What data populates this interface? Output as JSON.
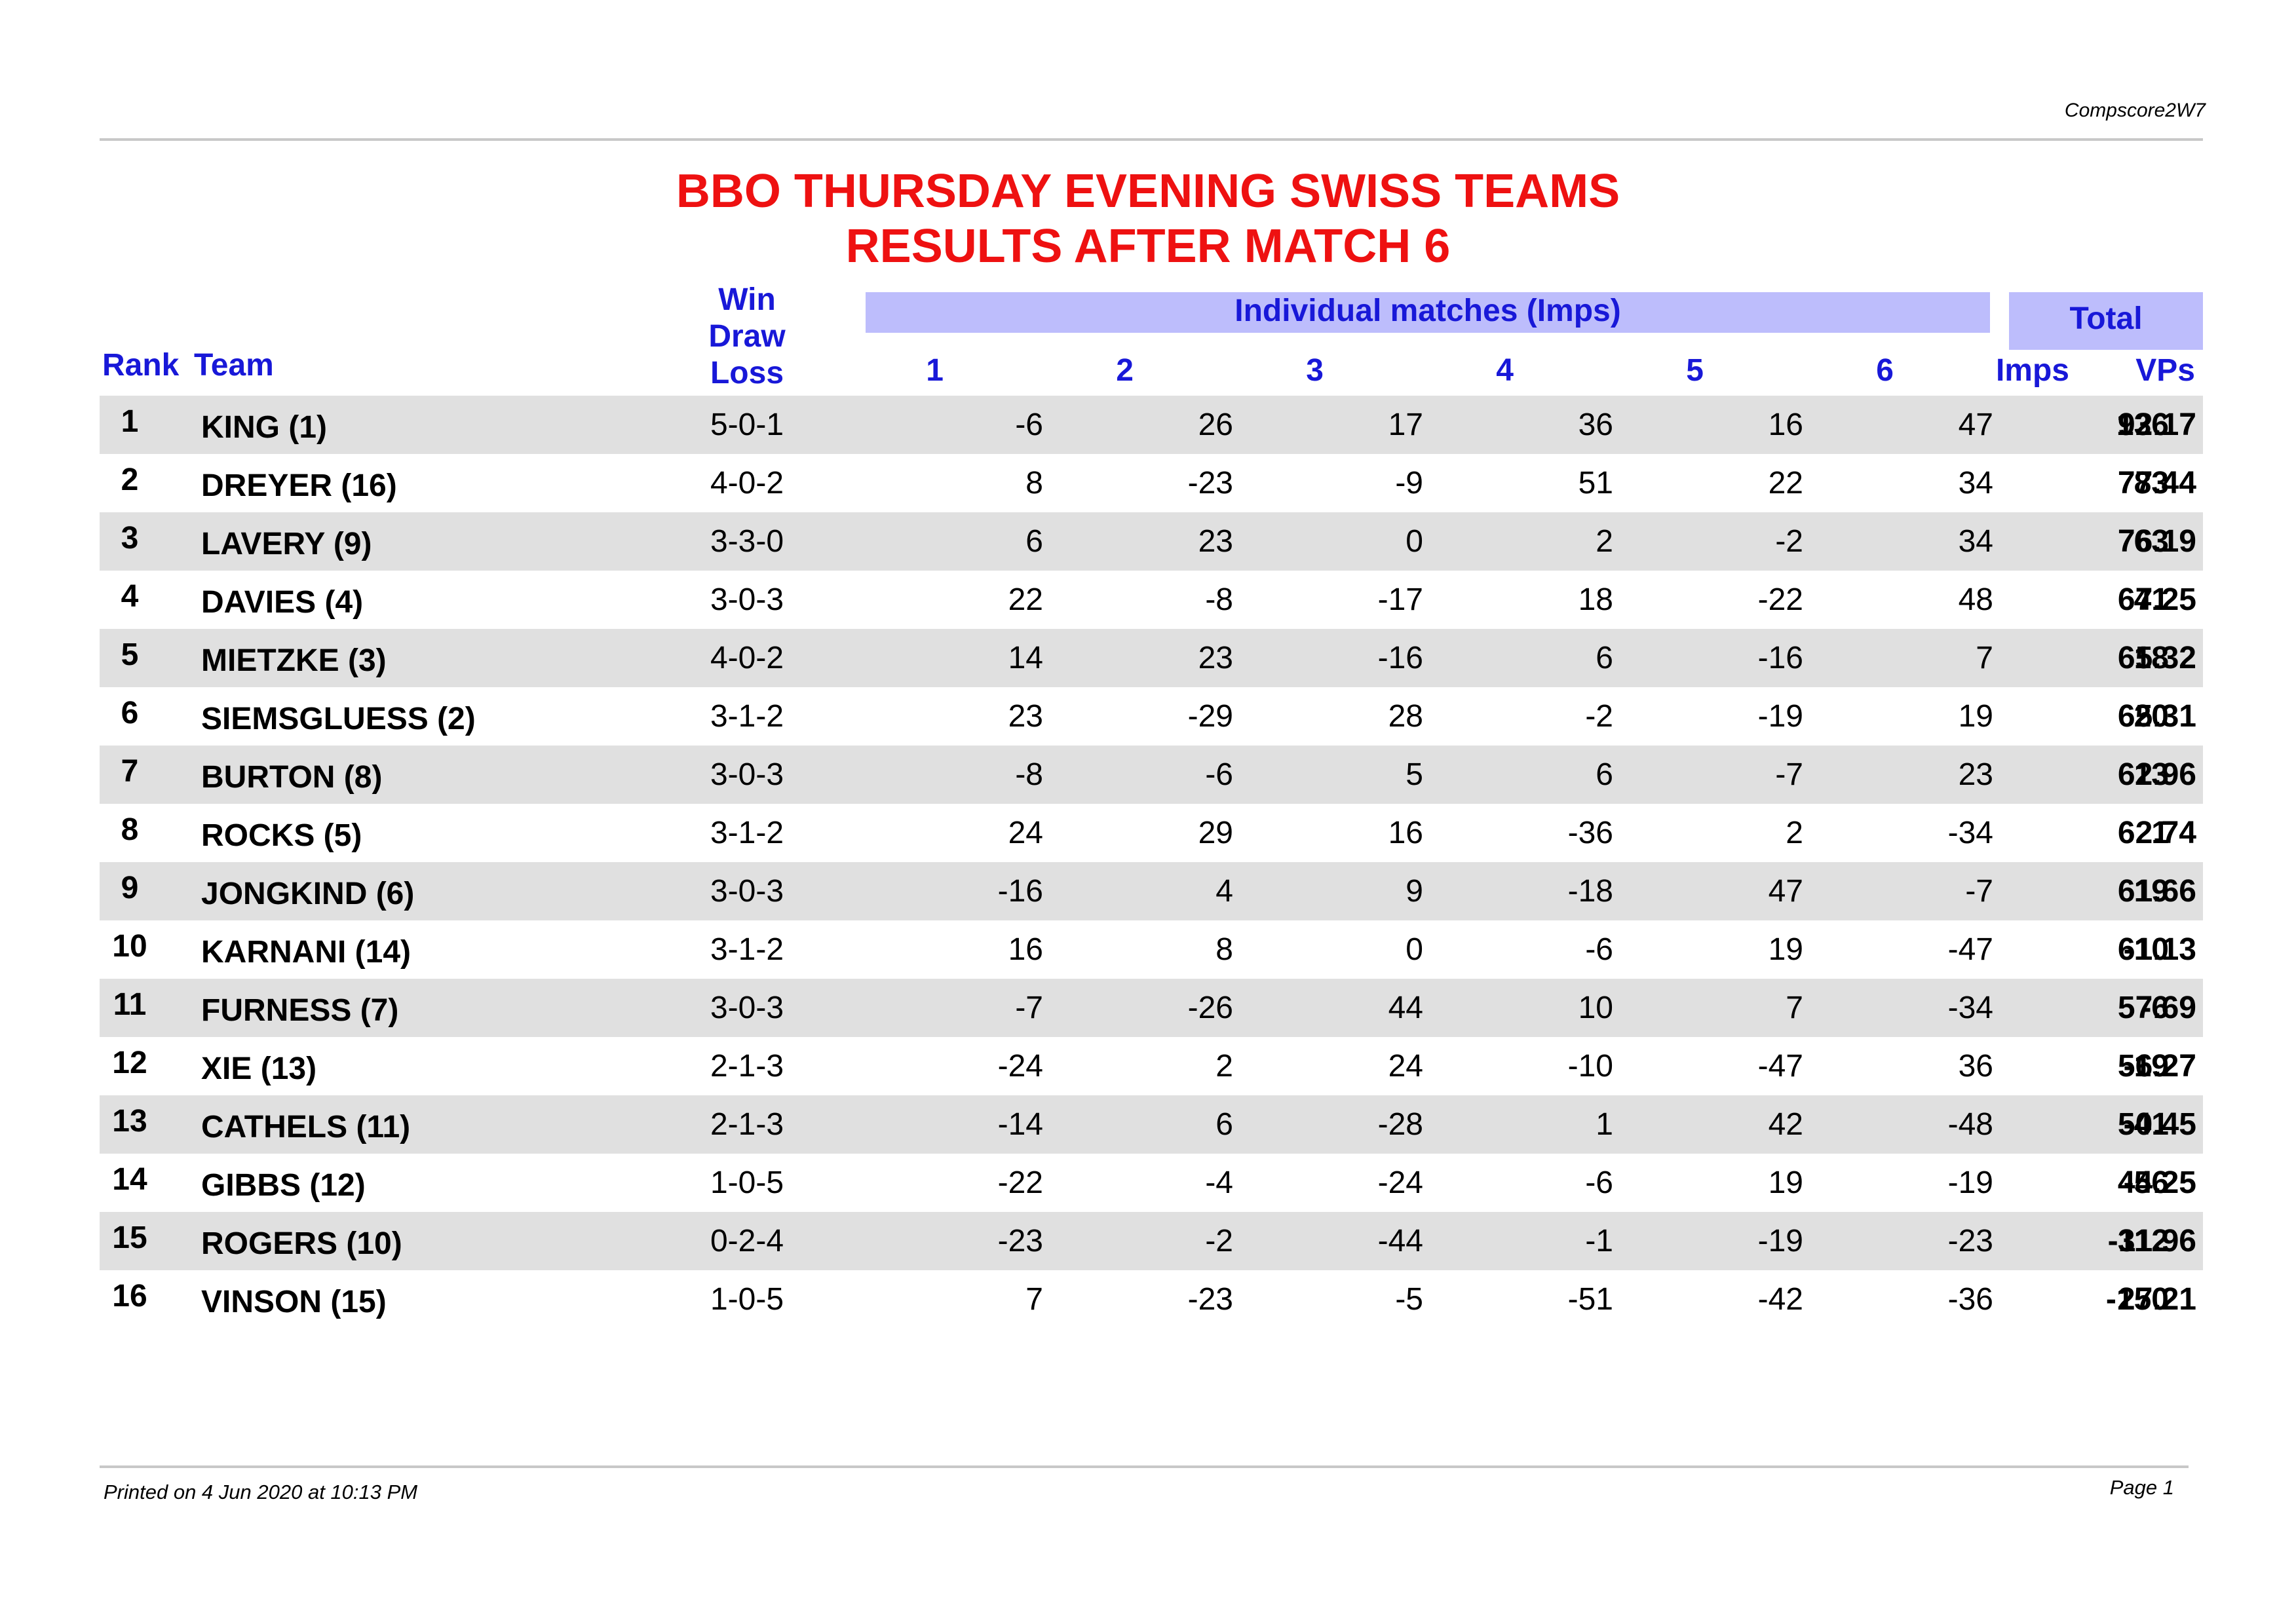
{
  "header": {
    "code": "Compscore2W7"
  },
  "title": {
    "line1": "BBO THURSDAY EVENING SWISS TEAMS",
    "line2": "RESULTS AFTER MATCH 6"
  },
  "columns": {
    "rank": "Rank",
    "team": "Team",
    "wdl": {
      "win": "Win",
      "draw": "Draw",
      "loss": "Loss"
    },
    "matches_group": "Individual matches (Imps)",
    "matches": [
      "1",
      "2",
      "3",
      "4",
      "5",
      "6"
    ],
    "total_group": "Total",
    "imps": "Imps",
    "vps": "VPs"
  },
  "rows": [
    {
      "rank": "1",
      "team": "KING (1)",
      "wdl": "5-0-1",
      "m": [
        "-6",
        "26",
        "17",
        "36",
        "16",
        "47"
      ],
      "imps": "136",
      "vps": "92.17"
    },
    {
      "rank": "2",
      "team": "DREYER (16)",
      "wdl": "4-0-2",
      "m": [
        "8",
        "-23",
        "-9",
        "51",
        "22",
        "34"
      ],
      "imps": "83",
      "vps": "77.44"
    },
    {
      "rank": "3",
      "team": "LAVERY (9)",
      "wdl": "3-3-0",
      "m": [
        "6",
        "23",
        "0",
        "2",
        "-2",
        "34"
      ],
      "imps": "63",
      "vps": "76.19"
    },
    {
      "rank": "4",
      "team": "DAVIES (4)",
      "wdl": "3-0-3",
      "m": [
        "22",
        "-8",
        "-17",
        "18",
        "-22",
        "48"
      ],
      "imps": "41",
      "vps": "67.25"
    },
    {
      "rank": "5",
      "team": "MIETZKE (3)",
      "wdl": "4-0-2",
      "m": [
        "14",
        "23",
        "-16",
        "6",
        "-16",
        "7"
      ],
      "imps": "18",
      "vps": "65.32"
    },
    {
      "rank": "6",
      "team": "SIEMSGLUESS (2)",
      "wdl": "3-1-2",
      "m": [
        "23",
        "-29",
        "28",
        "-2",
        "-19",
        "19"
      ],
      "imps": "20",
      "vps": "65.31"
    },
    {
      "rank": "7",
      "team": "BURTON (8)",
      "wdl": "3-0-3",
      "m": [
        "-8",
        "-6",
        "5",
        "6",
        "-7",
        "23"
      ],
      "imps": "13",
      "vps": "62.96"
    },
    {
      "rank": "8",
      "team": "ROCKS (5)",
      "wdl": "3-1-2",
      "m": [
        "24",
        "29",
        "16",
        "-36",
        "2",
        "-34"
      ],
      "imps": "1",
      "vps": "62.74"
    },
    {
      "rank": "9",
      "team": "JONGKIND (6)",
      "wdl": "3-0-3",
      "m": [
        "-16",
        "4",
        "9",
        "-18",
        "47",
        "-7"
      ],
      "imps": "19",
      "vps": "61.66"
    },
    {
      "rank": "10",
      "team": "KARNANI (14)",
      "wdl": "3-1-2",
      "m": [
        "16",
        "8",
        "0",
        "-6",
        "19",
        "-47"
      ],
      "imps": "-10",
      "vps": "61.13"
    },
    {
      "rank": "11",
      "team": "FURNESS (7)",
      "wdl": "3-0-3",
      "m": [
        "-7",
        "-26",
        "44",
        "10",
        "7",
        "-34"
      ],
      "imps": "-6",
      "vps": "57.69"
    },
    {
      "rank": "12",
      "team": "XIE (13)",
      "wdl": "2-1-3",
      "m": [
        "-24",
        "2",
        "24",
        "-10",
        "-47",
        "36"
      ],
      "imps": "-19",
      "vps": "56.27"
    },
    {
      "rank": "13",
      "team": "CATHELS (11)",
      "wdl": "2-1-3",
      "m": [
        "-14",
        "6",
        "-28",
        "1",
        "42",
        "-48"
      ],
      "imps": "-41",
      "vps": "50.45"
    },
    {
      "rank": "14",
      "team": "GIBBS (12)",
      "wdl": "1-0-5",
      "m": [
        "-22",
        "-4",
        "-24",
        "-6",
        "19",
        "-19"
      ],
      "imps": "-56",
      "vps": "44.25"
    },
    {
      "rank": "15",
      "team": "ROGERS (10)",
      "wdl": "0-2-4",
      "m": [
        "-23",
        "-2",
        "-44",
        "-1",
        "-19",
        "-23"
      ],
      "imps": "-112",
      "vps": "31.96"
    },
    {
      "rank": "16",
      "team": "VINSON (15)",
      "wdl": "1-0-5",
      "m": [
        "7",
        "-23",
        "-5",
        "-51",
        "-42",
        "-36"
      ],
      "imps": "-150",
      "vps": "27.21"
    }
  ],
  "footer": {
    "printed": "Printed on 4 Jun 2020 at 10:13 PM",
    "page": "Page 1"
  },
  "colors": {
    "title": "#ee1111",
    "header_text": "#1818d8",
    "header_band": "#bdbdfc",
    "row_shade": "#e0e0e0",
    "rule": "#c8c8c8"
  }
}
